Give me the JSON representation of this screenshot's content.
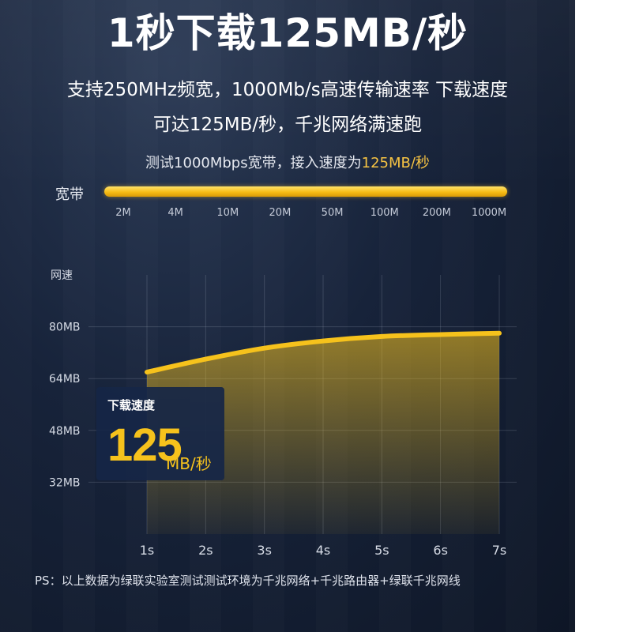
{
  "header": {
    "title": "1秒下载125MB/秒",
    "subtitle_line1": "支持250MHz频宽，1000Mb/s高速传输速率 下载速度",
    "subtitle_line2": "可达125MB/秒，千兆网络满速跑"
  },
  "bandwidth": {
    "caption_prefix": "测试1000Mbps宽带，接入速度为",
    "caption_highlight": "125MB/秒",
    "label": "宽带",
    "ticks": [
      "2M",
      "4M",
      "10M",
      "20M",
      "50M",
      "100M",
      "200M",
      "1000M"
    ],
    "fill_fraction": 1.0
  },
  "chart_data": {
    "type": "area",
    "ylabel": "网速",
    "y_ticks": [
      "32MB",
      "48MB",
      "64MB",
      "80MB"
    ],
    "ylim": [
      16,
      96
    ],
    "x": [
      "1s",
      "2s",
      "3s",
      "4s",
      "5s",
      "6s",
      "7s"
    ],
    "series": [
      {
        "values": [
          66,
          70,
          73.4,
          75.6,
          77,
          77.6,
          78
        ]
      }
    ],
    "line_color": "#f6c21c"
  },
  "speed_box": {
    "title": "下载速度",
    "value": "125",
    "unit": "MB/秒"
  },
  "footnote": "PS：以上数据为绿联实验室测试测试环境为千兆网络+千兆路由器+绿联千兆网线"
}
